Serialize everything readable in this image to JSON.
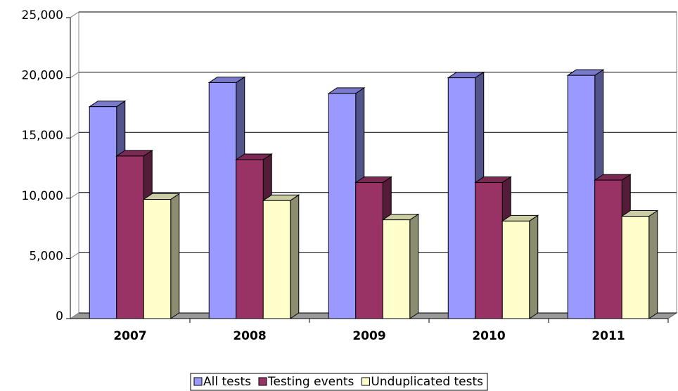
{
  "chart_data": {
    "type": "bar3d",
    "categories": [
      "2007",
      "2008",
      "2009",
      "2010",
      "2011"
    ],
    "series": [
      {
        "name": "All tests",
        "color": "#9999ff",
        "values": [
          17600,
          19600,
          18700,
          20000,
          20200
        ]
      },
      {
        "name": "Testing events",
        "color": "#993366",
        "values": [
          13500,
          13200,
          11300,
          11300,
          11500
        ]
      },
      {
        "name": "Unduplicated tests",
        "color": "#ffffcc",
        "values": [
          9900,
          9800,
          8200,
          8100,
          8500
        ]
      }
    ],
    "ylim": [
      0,
      25000
    ],
    "yticks": [
      0,
      {
        "value": 5000,
        "label": "5,000"
      },
      {
        "value": 10000,
        "label": "10,000"
      },
      {
        "value": 15000,
        "label": "15,000"
      },
      {
        "value": 20000,
        "label": "20,000"
      },
      {
        "value": 25000,
        "label": "25,000"
      }
    ],
    "grid": true,
    "legend": "bottom"
  }
}
